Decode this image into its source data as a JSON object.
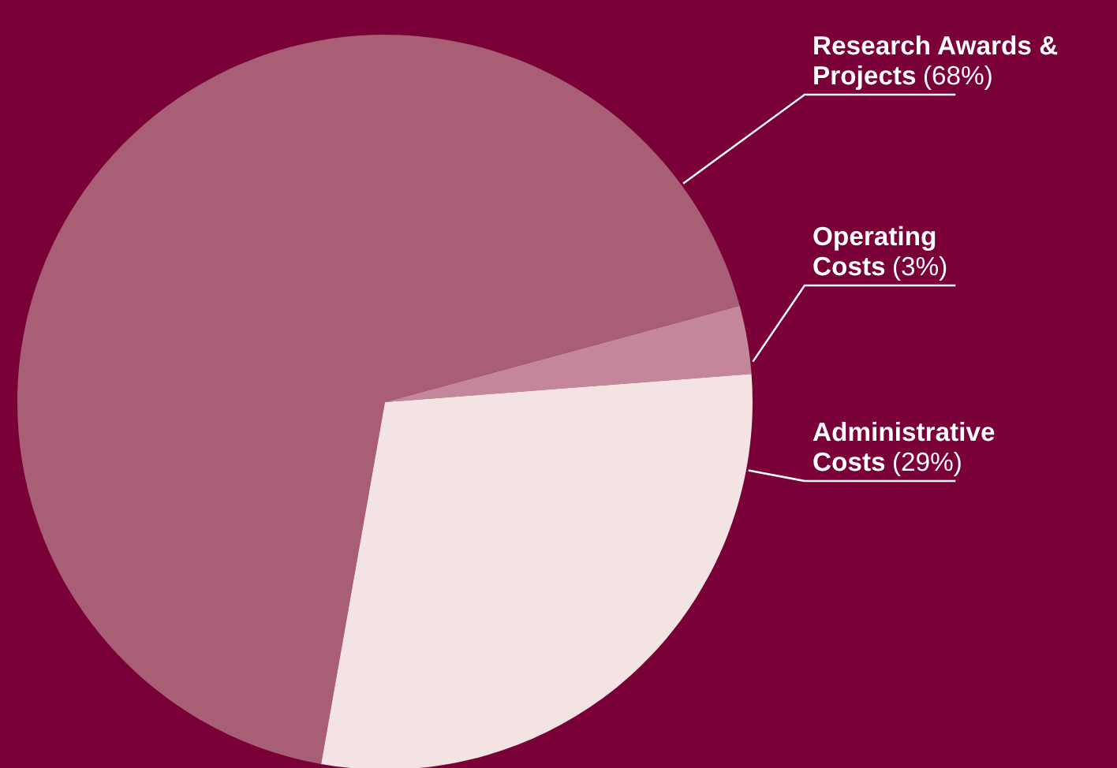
{
  "chart_data": {
    "type": "pie",
    "categories": [
      "Research Awards & Projects",
      "Operating Costs",
      "Administrative Costs"
    ],
    "values": [
      68,
      3,
      29
    ],
    "colors": [
      "#a85e74",
      "#c4869a",
      "#f3e4e3"
    ],
    "value_labels": [
      "(68%)",
      "(3%)",
      "(29%)"
    ],
    "legend": false
  }
}
